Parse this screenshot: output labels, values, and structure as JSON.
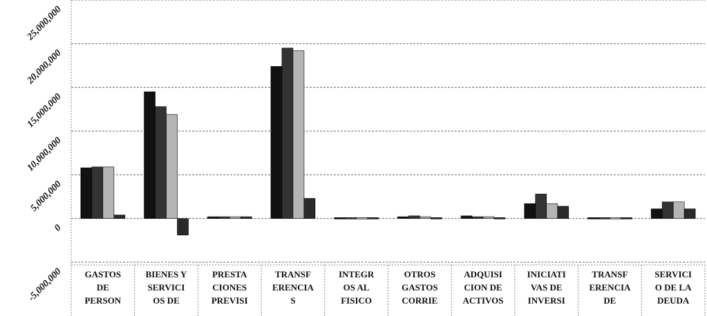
{
  "chart_data": {
    "type": "bar",
    "categories": [
      "GASTOS\nDE\nPERSON",
      "BIENES Y\nSERVICI\nOS DE",
      "PRESTA\nCIONES\nPREVISI",
      "TRANSF\nERENCIA\nS",
      "INTEGR\nOS AL\nFISICO",
      "OTROS\nGASTOS\nCORRIE",
      "ADQUISI\nCION DE\nACTIVOS",
      "INICIATI\nVAS DE\nINVERSI",
      "TRANSF\nERENCIA\nDE",
      "SERVICI\nO DE LA\nDEUDA"
    ],
    "series": [
      {
        "color": "#111111",
        "values": [
          5800000,
          14500000,
          200000,
          17400000,
          100000,
          200000,
          300000,
          1700000,
          100000,
          1100000
        ]
      },
      {
        "color": "#333333",
        "values": [
          5900000,
          12800000,
          200000,
          19500000,
          100000,
          300000,
          200000,
          2800000,
          100000,
          1900000
        ]
      },
      {
        "color": "#b5b5b5",
        "values": [
          5900000,
          11900000,
          200000,
          19200000,
          100000,
          200000,
          200000,
          1700000,
          100000,
          1900000
        ]
      },
      {
        "color": "#2a2a2a",
        "values": [
          400000,
          -1900000,
          200000,
          2300000,
          100000,
          100000,
          100000,
          1400000,
          100000,
          1100000
        ]
      }
    ],
    "ylim": [
      -5000000,
      25000000
    ],
    "yticks": [
      {
        "value": -5000000,
        "label": "-5,000,000"
      },
      0,
      {
        "value": 5000000,
        "label": "5,000,000"
      },
      {
        "value": 10000000,
        "label": "10,000,000"
      },
      {
        "value": 15000000,
        "label": "15,000,000"
      },
      {
        "value": 20000000,
        "label": "20,000,000"
      },
      {
        "value": 25000000,
        "label": "25,000,000"
      }
    ],
    "grid": true
  }
}
